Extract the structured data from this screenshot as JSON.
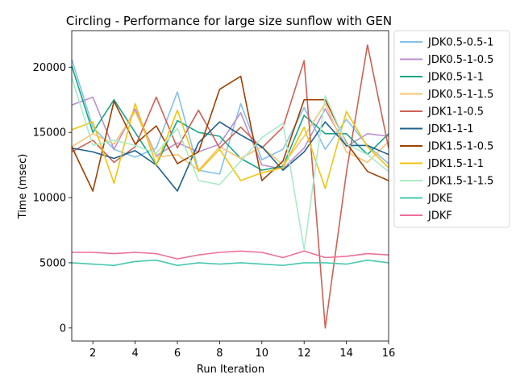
{
  "chart_data": {
    "type": "line",
    "title": "Circling - Performance for large size sunflow with GEN",
    "xlabel": "Run Iteration",
    "ylabel": "Time (msec)",
    "xlim": [
      1,
      16
    ],
    "ylim": [
      -1000,
      22800
    ],
    "xticks": [
      2,
      4,
      6,
      8,
      10,
      12,
      14,
      16
    ],
    "yticks": [
      0,
      5000,
      10000,
      15000,
      20000
    ],
    "grid": false,
    "legend_position": "outside-right",
    "x": [
      1,
      2,
      3,
      4,
      5,
      6,
      7,
      8,
      9,
      10,
      11,
      12,
      13,
      14,
      15,
      16
    ],
    "series": [
      {
        "name": "JDK0.5-0.5-1",
        "color": "#85c1e9",
        "values": [
          20600,
          15400,
          13700,
          13100,
          13800,
          18100,
          12100,
          11800,
          17200,
          12900,
          13700,
          16900,
          13700,
          16000,
          14000,
          12600
        ]
      },
      {
        "name": "JDK0.5-1-0.5",
        "color": "#bb8fce",
        "values": [
          17100,
          17700,
          13700,
          16800,
          13200,
          14200,
          13500,
          14100,
          16500,
          12500,
          12200,
          13800,
          16800,
          13900,
          14900,
          14700
        ]
      },
      {
        "name": "JDK0.5-1-1",
        "color": "#17a589",
        "values": [
          20100,
          15000,
          17500,
          15000,
          12500,
          15900,
          15000,
          14700,
          13000,
          12100,
          12400,
          16300,
          14900,
          14900,
          13300,
          14900
        ]
      },
      {
        "name": "JDK0.5-1-1.5",
        "color": "#f8c471",
        "values": [
          13900,
          14900,
          14100,
          16600,
          13100,
          13300,
          12100,
          13900,
          13000,
          13900,
          12500,
          14700,
          17200,
          13500,
          12700,
          14300
        ]
      },
      {
        "name": "JDK1-1-0.5",
        "color": "#cd6155",
        "values": [
          13500,
          14400,
          12700,
          13900,
          17700,
          13800,
          16700,
          13800,
          15400,
          13800,
          15400,
          20500,
          0,
          11900,
          21700,
          13800
        ]
      },
      {
        "name": "JDK1-1-1",
        "color": "#1f618d",
        "values": [
          13800,
          13500,
          13000,
          13600,
          12500,
          10500,
          14200,
          15800,
          14800,
          13900,
          12100,
          13500,
          15800,
          14000,
          14000,
          13300
        ]
      },
      {
        "name": "JDK1.5-1-0.5",
        "color": "#a04000",
        "values": [
          13900,
          10500,
          17400,
          14100,
          15500,
          12600,
          13500,
          18300,
          19300,
          11300,
          12800,
          17500,
          17500,
          14200,
          12000,
          11300
        ]
      },
      {
        "name": "JDK1.5-1-1",
        "color": "#f1c40f",
        "values": [
          15200,
          15800,
          11100,
          17200,
          12500,
          16700,
          12000,
          13700,
          11300,
          11900,
          12300,
          15400,
          10700,
          16600,
          13900,
          12300
        ]
      },
      {
        "name": "JDK1.5-1-1.5",
        "color": "#abebc6",
        "values": [
          19200,
          14000,
          14400,
          14000,
          13400,
          15300,
          11300,
          11000,
          12800,
          14600,
          15700,
          6000,
          17800,
          14100,
          13300,
          12000
        ]
      },
      {
        "name": "JDKE",
        "color": "#48c9b0",
        "values": [
          5000,
          4900,
          4800,
          5100,
          5200,
          4800,
          5000,
          4900,
          5000,
          4900,
          4800,
          5000,
          5000,
          4900,
          5200,
          5000
        ]
      },
      {
        "name": "JDKF",
        "color": "#ec7096",
        "values": [
          5800,
          5800,
          5700,
          5800,
          5700,
          5300,
          5600,
          5800,
          5900,
          5800,
          5400,
          5900,
          5400,
          5500,
          5700,
          5600
        ]
      }
    ]
  }
}
